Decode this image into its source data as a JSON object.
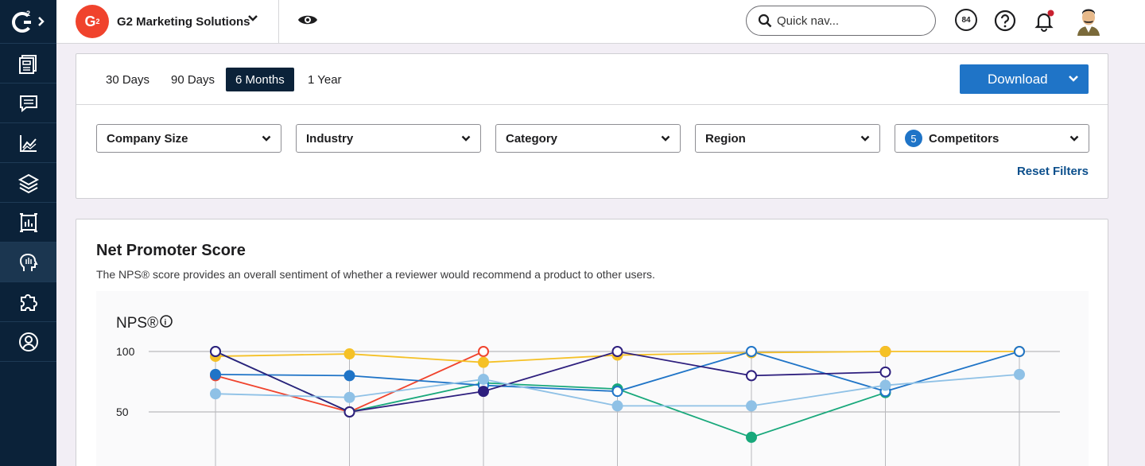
{
  "brand": {
    "name": "G2 Marketing Solutions",
    "logo_letter": "G"
  },
  "search": {
    "placeholder": "Quick nav..."
  },
  "header": {
    "score": "84"
  },
  "time_range": {
    "options": [
      "30 Days",
      "90 Days",
      "6 Months",
      "1 Year"
    ],
    "selected": "6 Months"
  },
  "download": {
    "label": "Download"
  },
  "filters": {
    "company_size": "Company Size",
    "industry": "Industry",
    "category": "Category",
    "region": "Region",
    "competitors": {
      "count": "5",
      "label": "Competitors"
    },
    "reset": "Reset Filters"
  },
  "nps_card": {
    "title": "Net Promoter Score",
    "subtitle": "The NPS® score provides an overall sentiment of whether a reviewer would recommend a product to other users."
  },
  "chart_data": {
    "type": "line",
    "ylabel": "NPS®",
    "y_ticks": [
      100,
      50
    ],
    "ylim": [
      0,
      100
    ],
    "grid": true,
    "x_index": [
      0,
      1,
      2,
      3,
      4,
      5,
      6
    ],
    "series": [
      {
        "color": "#f0432d",
        "values": [
          80,
          50,
          100,
          null,
          null,
          100,
          null
        ],
        "hollow": [
          false,
          false,
          true,
          false,
          false,
          true,
          false
        ]
      },
      {
        "color": "#f5c127",
        "values": [
          96,
          98,
          91,
          97,
          99,
          100,
          100
        ],
        "hollow": [
          false,
          false,
          false,
          false,
          false,
          false,
          false
        ]
      },
      {
        "color": "#18a87b",
        "values": [
          100,
          50,
          74,
          69,
          29,
          66,
          null
        ],
        "hollow": [
          false,
          false,
          false,
          false,
          false,
          false,
          false
        ]
      },
      {
        "color": "#1f74c7",
        "values": [
          81,
          80,
          72,
          67,
          100,
          67,
          100
        ],
        "hollow": [
          false,
          false,
          true,
          true,
          true,
          true,
          true
        ]
      },
      {
        "color": "#2e1f7e",
        "values": [
          100,
          50,
          67,
          100,
          80,
          83,
          null
        ],
        "hollow": [
          true,
          true,
          false,
          true,
          true,
          true,
          false
        ]
      },
      {
        "color": "#8fc1e6",
        "values": [
          65,
          62,
          77,
          55,
          55,
          72,
          81
        ],
        "hollow": [
          false,
          false,
          false,
          false,
          false,
          false,
          false
        ]
      }
    ]
  },
  "colors": {
    "nav": "#0b2239",
    "accent": "#1f74c7",
    "brand": "#f0432d"
  }
}
